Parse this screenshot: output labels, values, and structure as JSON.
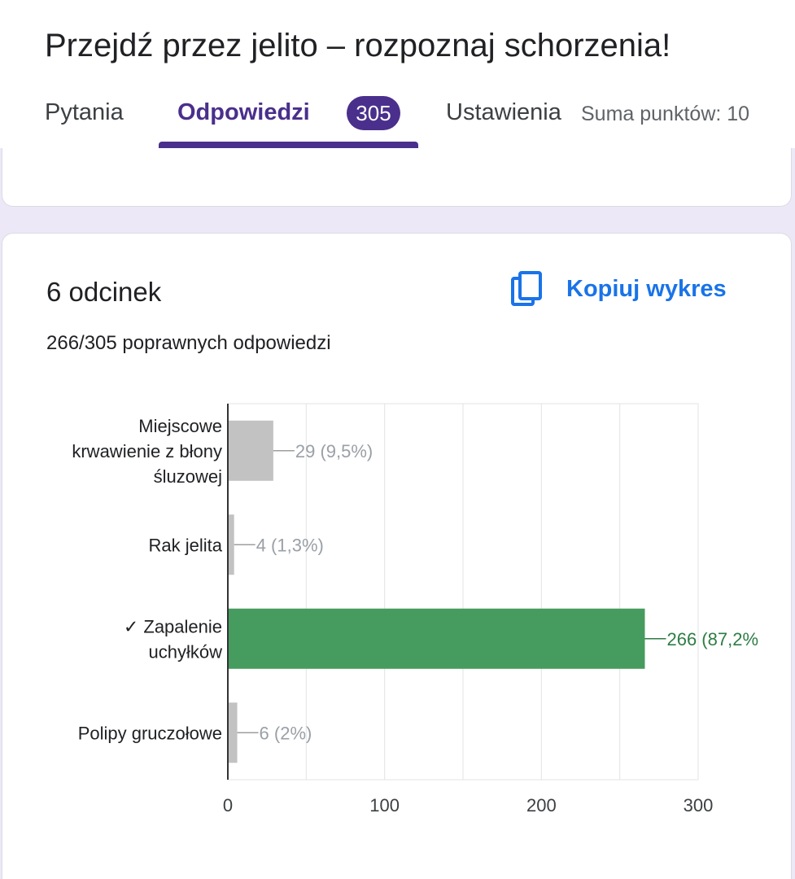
{
  "form": {
    "title": "Przejdź przez jelito – rozpoznaj schorzenia!"
  },
  "tabs": {
    "questions": "Pytania",
    "responses": "Odpowiedzi",
    "responses_count": "305",
    "settings": "Ustawienia",
    "points_total": "Suma punktów: 10"
  },
  "colors": {
    "accent": "#4a2f8c",
    "link": "#1a73e8",
    "correct_bar": "#469b5f",
    "incorrect_bar": "#c2c2c2",
    "correct_label": "#2e7d45",
    "incorrect_label": "#9aa0a6",
    "background": "#ede8f7"
  },
  "question": {
    "title": "6 odcinek",
    "copy_icon": "copy-icon",
    "copy_label": "Kopiuj wykres",
    "correct_summary": "266/305 poprawnych odpowiedzi"
  },
  "chart_data": {
    "type": "bar",
    "orientation": "horizontal",
    "categories": [
      {
        "lines": [
          "Miejscowe",
          "krwawienie z błony",
          "śluzowej"
        ],
        "correct": false
      },
      {
        "lines": [
          "Rak jelita"
        ],
        "correct": false
      },
      {
        "lines": [
          "✓ Zapalenie",
          "uchyłków"
        ],
        "correct": true
      },
      {
        "lines": [
          "Polipy gruczołowe"
        ],
        "correct": false
      }
    ],
    "values": [
      29,
      4,
      266,
      6
    ],
    "data_labels": [
      "29 (9,5%)",
      "4 (1,3%)",
      "266 (87,2%",
      "6 (2%)"
    ],
    "xlim": [
      0,
      300
    ],
    "x_ticks": [
      0,
      100,
      200,
      300
    ],
    "grid": true
  }
}
